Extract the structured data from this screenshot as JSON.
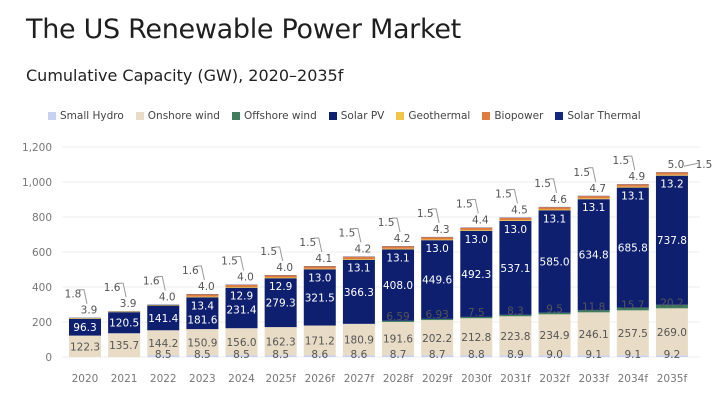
{
  "header": {
    "title": "The US Renewable Power Market",
    "subtitle": "Cumulative Capacity (GW), 2020–2035f"
  },
  "chart_data": {
    "type": "bar",
    "stacked": true,
    "categories": [
      "2020",
      "2021",
      "2022",
      "2023",
      "2024",
      "2025f",
      "2026f",
      "2027f",
      "2028f",
      "2029f",
      "2030f",
      "2031f",
      "2032f",
      "2033f",
      "2034f",
      "2035f"
    ],
    "ylim": [
      0,
      1200
    ],
    "yticks": [
      "0",
      "200",
      "400",
      "600",
      "800",
      "1,000",
      "1,200"
    ],
    "ytick_values": [
      0,
      200,
      400,
      600,
      800,
      1000,
      1200
    ],
    "grid": true,
    "legend_position": "top",
    "series": [
      {
        "name": "Small Hydro",
        "color": "#c9d1f2",
        "values": [
          null,
          null,
          8.5,
          8.5,
          8.5,
          8.5,
          8.6,
          8.6,
          8.7,
          8.7,
          8.8,
          8.9,
          9.0,
          9.1,
          9.1,
          9.2
        ]
      },
      {
        "name": "Onshore wind",
        "color": "#e9dcc6",
        "values": [
          122.3,
          135.7,
          144.2,
          150.9,
          156.0,
          162.3,
          171.2,
          180.9,
          191.6,
          202.2,
          212.8,
          223.8,
          234.9,
          246.1,
          257.5,
          269.0
        ]
      },
      {
        "name": "Offshore wind",
        "color": "#3f7d5c",
        "values": [
          null,
          null,
          null,
          null,
          null,
          null,
          null,
          null,
          6.59,
          6.93,
          7.5,
          8.3,
          9.5,
          11.8,
          15.7,
          20.2
        ]
      },
      {
        "name": "Solar PV",
        "color": "#0e1f70",
        "values": [
          96.3,
          120.5,
          141.4,
          181.6,
          231.4,
          279.3,
          321.5,
          366.3,
          408.0,
          449.6,
          492.3,
          537.1,
          585.0,
          634.8,
          685.8,
          737.8
        ]
      },
      {
        "name": "Geothermal",
        "color": "#f0c64a",
        "values": [
          3.9,
          3.9,
          4.0,
          4.0,
          4.0,
          4.0,
          4.1,
          4.2,
          4.2,
          4.3,
          4.4,
          4.5,
          4.6,
          4.7,
          4.9,
          5.0
        ]
      },
      {
        "name": "Biopower",
        "color": "#e07c3e",
        "values": [
          null,
          null,
          null,
          13.4,
          12.9,
          12.9,
          13.0,
          13.1,
          13.1,
          13.0,
          13.0,
          13.0,
          13.1,
          13.1,
          13.1,
          13.2
        ]
      },
      {
        "name": "Solar Thermal",
        "color": "#15277e",
        "values": [
          1.8,
          1.6,
          1.6,
          1.6,
          1.5,
          1.5,
          1.5,
          1.5,
          1.5,
          1.5,
          1.5,
          1.5,
          1.5,
          1.5,
          1.5,
          1.5
        ]
      }
    ]
  }
}
